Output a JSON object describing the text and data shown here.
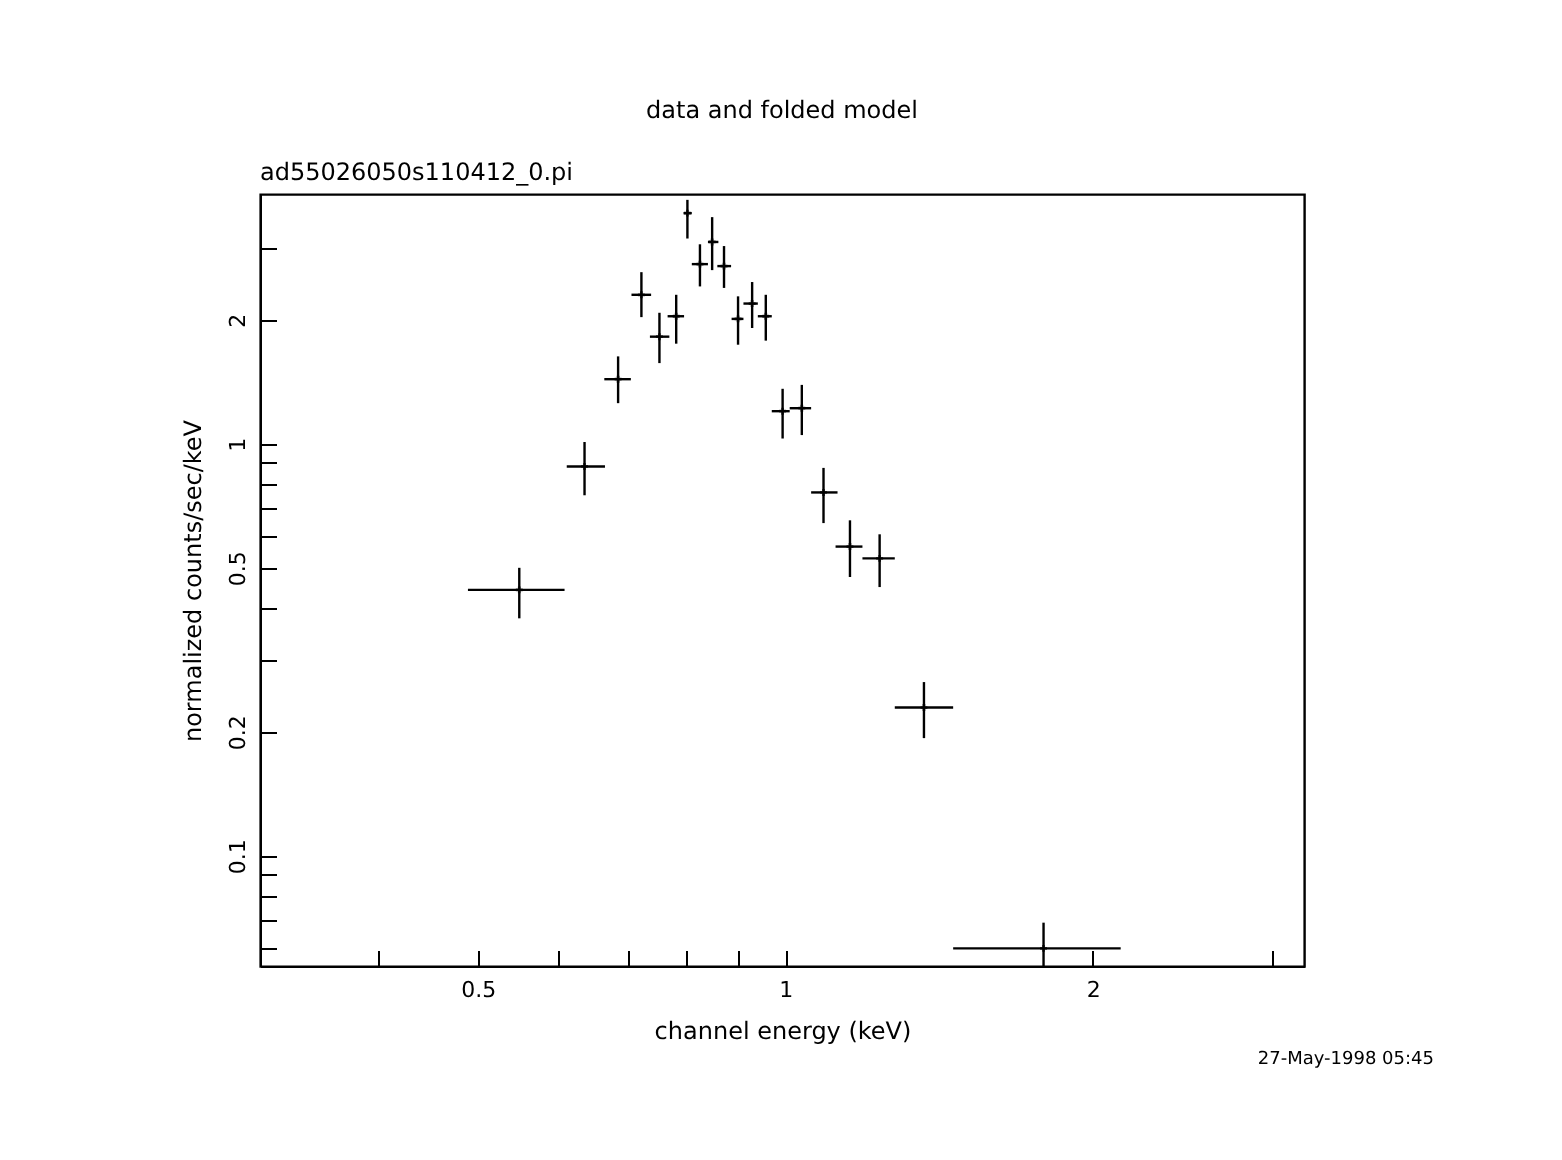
{
  "chart_data": {
    "type": "scatter",
    "title": "data and folded model",
    "subtitle": "ad55026050s110412_0.pi",
    "xlabel": "channel energy (keV)",
    "ylabel": "normalized counts/sec/keV",
    "annotations": [
      "27-May-1998 05:45"
    ],
    "log": "xy",
    "grid": false,
    "marker": "cross",
    "xlim": [
      0.306,
      3.22
    ],
    "ylim": [
      0.054,
      4.04
    ],
    "xticks": [
      {
        "value": 0.4,
        "label": null
      },
      0.5,
      {
        "value": 0.6,
        "label": null
      },
      {
        "value": 0.7,
        "label": null
      },
      {
        "value": 0.8,
        "label": null
      },
      {
        "value": 0.9,
        "label": null
      },
      1,
      2,
      {
        "value": 3,
        "label": null
      }
    ],
    "yticks": [
      {
        "value": 0.06,
        "label": null
      },
      {
        "value": 0.07,
        "label": null
      },
      {
        "value": 0.08,
        "label": null
      },
      {
        "value": 0.09,
        "label": null
      },
      0.1,
      0.2,
      {
        "value": 0.3,
        "label": null
      },
      {
        "value": 0.4,
        "label": null
      },
      0.5,
      {
        "value": 0.6,
        "label": null
      },
      {
        "value": 0.7,
        "label": null
      },
      {
        "value": 0.8,
        "label": null
      },
      {
        "value": 0.9,
        "label": null
      },
      1,
      2,
      {
        "value": 3,
        "label": null
      }
    ],
    "series": [
      {
        "color": "#000000",
        "x": [
          0.549,
          0.636,
          0.686,
          0.723,
          0.753,
          0.782,
          0.802,
          0.825,
          0.848,
          0.871,
          0.899,
          0.928,
          0.957,
          0.994,
          1.038,
          1.09,
          1.157,
          1.237,
          1.367,
          1.79
        ],
        "values": [
          0.442,
          0.881,
          1.435,
          2.3,
          1.82,
          2.04,
          3.63,
          2.73,
          3.09,
          2.7,
          2.01,
          2.19,
          2.04,
          1.2,
          1.22,
          0.762,
          0.563,
          0.527,
          0.229,
          0.0596
        ],
        "errors": [
          [
            0.377,
            0.5
          ],
          [
            0.75,
            1.01
          ],
          [
            1.255,
            1.63
          ],
          [
            2.03,
            2.61
          ],
          [
            1.57,
            2.08
          ],
          [
            1.75,
            2.3
          ],
          [
            3.15,
            3.91
          ],
          [
            2.41,
            3.05
          ],
          [
            2.64,
            3.55
          ],
          [
            2.39,
            3.02
          ],
          [
            1.74,
            2.28
          ],
          [
            1.91,
            2.47
          ],
          [
            1.78,
            2.3
          ],
          [
            1.03,
            1.36
          ],
          [
            1.05,
            1.39
          ],
          [
            0.642,
            0.874
          ],
          [
            0.475,
            0.652
          ],
          [
            0.449,
            0.603
          ],
          [
            0.193,
            0.264
          ],
          [
            0.054,
            0.0688
          ]
        ],
        "xerrors": [
          [
            0.489,
            0.608
          ],
          [
            0.611,
            0.666
          ],
          [
            0.665,
            0.706
          ],
          [
            0.707,
            0.739
          ],
          [
            0.737,
            0.77
          ],
          [
            0.767,
            0.796
          ],
          [
            0.795,
            0.81
          ],
          [
            0.81,
            0.84
          ],
          [
            0.84,
            0.86
          ],
          [
            0.858,
            0.885
          ],
          [
            0.886,
            0.91
          ],
          [
            0.91,
            0.94
          ],
          [
            0.94,
            0.97
          ],
          [
            0.97,
            1.01
          ],
          [
            1.01,
            1.06
          ],
          [
            1.06,
            1.125
          ],
          [
            1.12,
            1.19
          ],
          [
            1.19,
            1.28
          ],
          [
            1.28,
            1.46
          ],
          [
            1.46,
            2.13
          ]
        ]
      }
    ]
  }
}
